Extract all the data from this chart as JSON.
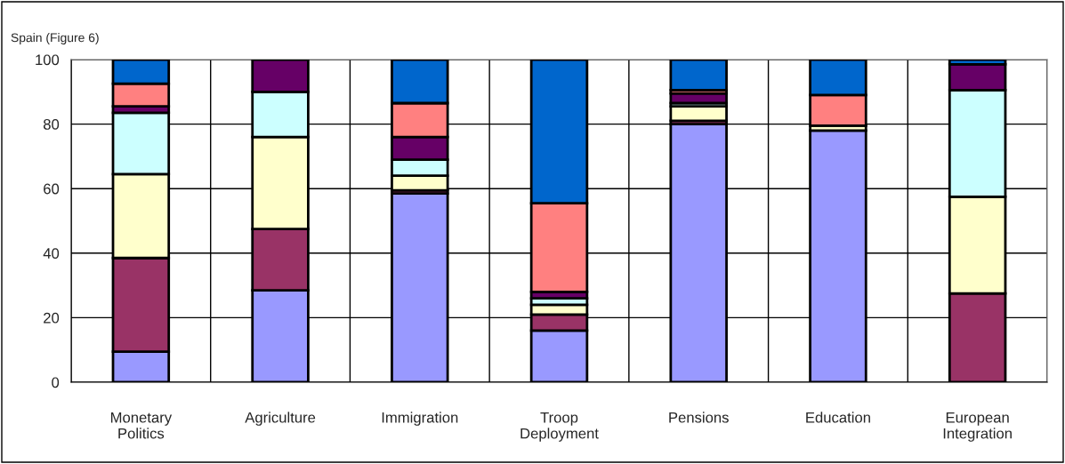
{
  "chart_data": {
    "type": "bar",
    "stacked": true,
    "title": "Spain (Figure 6)",
    "categories": [
      "Monetary\nPolitics",
      "Agriculture",
      "Immigration",
      "Troop\nDeployment",
      "Pensions",
      "Education",
      "European\nIntegration"
    ],
    "series": [
      {
        "color": "#9999ff",
        "values": [
          9.5,
          28.5,
          58.5,
          16,
          80,
          78,
          0
        ]
      },
      {
        "color": "#993366",
        "values": [
          29,
          19,
          1,
          5,
          1,
          0,
          27.5
        ]
      },
      {
        "color": "#ffffcc",
        "values": [
          26,
          28.5,
          4.5,
          3,
          4.5,
          1.5,
          30
        ]
      },
      {
        "color": "#ccffff",
        "values": [
          19,
          14,
          5,
          2,
          1,
          0,
          33
        ]
      },
      {
        "color": "#660066",
        "values": [
          2,
          10,
          7,
          2,
          3,
          0,
          8
        ]
      },
      {
        "color": "#ff8080",
        "values": [
          7,
          0,
          10.5,
          27.5,
          1,
          9.5,
          null
        ]
      },
      {
        "color": "#0066cc",
        "values": [
          7.5,
          0,
          13.5,
          44.5,
          9.5,
          11,
          1.5
        ]
      }
    ],
    "ylim": [
      0,
      100
    ],
    "yticks": [
      0,
      20,
      40,
      60,
      80,
      100
    ],
    "grid": true,
    "legend": false
  }
}
